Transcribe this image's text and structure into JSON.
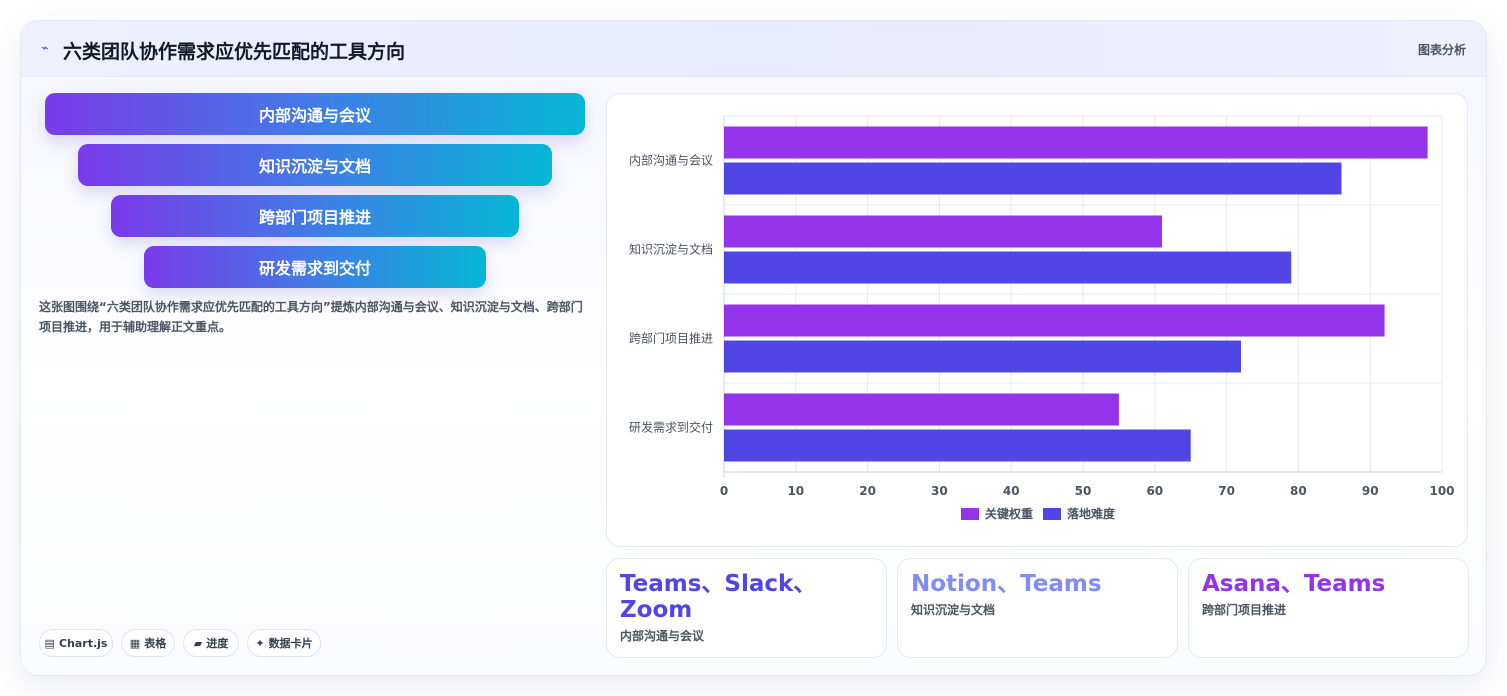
{
  "header": {
    "logo": "⌁",
    "title": "六类团队协作需求应优先匹配的工具方向",
    "link": "图表分析"
  },
  "funnel": [
    "内部沟通与会议",
    "知识沉淀与文档",
    "跨部门项目推进",
    "研发需求到交付"
  ],
  "description": "这张图围绕“六类团队协作需求应优先匹配的工具方向”提炼内部沟通与会议、知识沉淀与文档、跨部门项目推进，用于辅助理解正文重点。",
  "chips": [
    {
      "icon": "▤",
      "label": "Chart.js"
    },
    {
      "icon": "▦",
      "label": "表格"
    },
    {
      "icon": "▰",
      "label": "进度"
    },
    {
      "icon": "✦",
      "label": "数据卡片"
    }
  ],
  "cards": [
    {
      "tools": "Teams、Slack、Zoom",
      "category": "内部沟通与会议",
      "color": "#4f46e5"
    },
    {
      "tools": "Notion、Teams",
      "category": "知识沉淀与文档",
      "color": "#818cf8"
    },
    {
      "tools": "Asana、Teams",
      "category": "跨部门项目推进",
      "color": "#9333ea"
    }
  ],
  "chart_data": {
    "type": "bar",
    "orientation": "horizontal",
    "categories": [
      "内部沟通与会议",
      "知识沉淀与文档",
      "跨部门项目推进",
      "研发需求到交付"
    ],
    "series": [
      {
        "name": "关键权重",
        "values": [
          98,
          61,
          92,
          55
        ],
        "color": "#9333ea"
      },
      {
        "name": "落地难度",
        "values": [
          86,
          79,
          72,
          65
        ],
        "color": "#4f46e5"
      }
    ],
    "xlim": [
      0,
      100
    ],
    "xticks": [
      0,
      10,
      20,
      30,
      40,
      50,
      60,
      70,
      80,
      90,
      100
    ],
    "grid": true,
    "legend": "bottom"
  }
}
